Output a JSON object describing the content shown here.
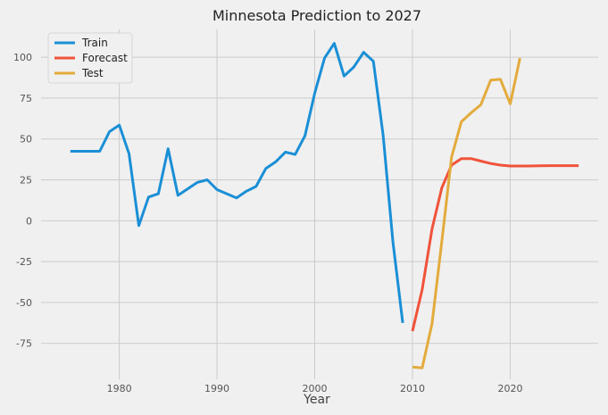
{
  "chart_data": {
    "type": "line",
    "title": "Minnesota Prediction to 2027",
    "xlabel": "Year",
    "ylabel": "",
    "xlim": [
      1972,
      2029
    ],
    "ylim": [
      -97,
      117
    ],
    "xticks": [
      1980,
      1990,
      2000,
      2010,
      2020
    ],
    "yticks": [
      -75,
      -50,
      -25,
      0,
      25,
      50,
      75,
      100
    ],
    "grid": true,
    "legend_position": "top-left",
    "series": [
      {
        "name": "Train",
        "color": "#1a8fd6",
        "x": [
          1975,
          1976,
          1977,
          1978,
          1979,
          1980,
          1981,
          1982,
          1983,
          1984,
          1985,
          1986,
          1987,
          1988,
          1989,
          1990,
          1991,
          1992,
          1993,
          1994,
          1995,
          1996,
          1997,
          1998,
          1999,
          2000,
          2001,
          2002,
          2003,
          2004,
          2005,
          2006,
          2007,
          2008,
          2009
        ],
        "y": [
          42.5,
          42.5,
          42.5,
          42.5,
          54.5,
          58.5,
          41,
          -3,
          14.5,
          16.5,
          44,
          15.5,
          19.5,
          23.5,
          25,
          19,
          16.5,
          14,
          18,
          21,
          32,
          36,
          42,
          40.5,
          52,
          78,
          99.5,
          108.5,
          88.5,
          94,
          103,
          97.5,
          52,
          -13,
          -62.5
        ]
      },
      {
        "name": "Forecast",
        "color": "#f0533a",
        "x": [
          2010,
          2011,
          2012,
          2013,
          2014,
          2015,
          2016,
          2017,
          2018,
          2019,
          2020,
          2021,
          2022,
          2023,
          2024,
          2025,
          2026,
          2027
        ],
        "y": [
          -67.5,
          -42,
          -5,
          20,
          34,
          38,
          38,
          36.5,
          35,
          34,
          33.5,
          33.5,
          33.5,
          33.6,
          33.7,
          33.7,
          33.7,
          33.7
        ]
      },
      {
        "name": "Test",
        "color": "#e3ab3c",
        "x": [
          2010,
          2011,
          2012,
          2013,
          2014,
          2015,
          2016,
          2017,
          2018,
          2019,
          2020,
          2021
        ],
        "y": [
          -89.5,
          -90,
          -63,
          -13,
          39,
          60.5,
          66,
          71,
          86,
          86.5,
          71.5,
          99.5
        ]
      }
    ]
  }
}
